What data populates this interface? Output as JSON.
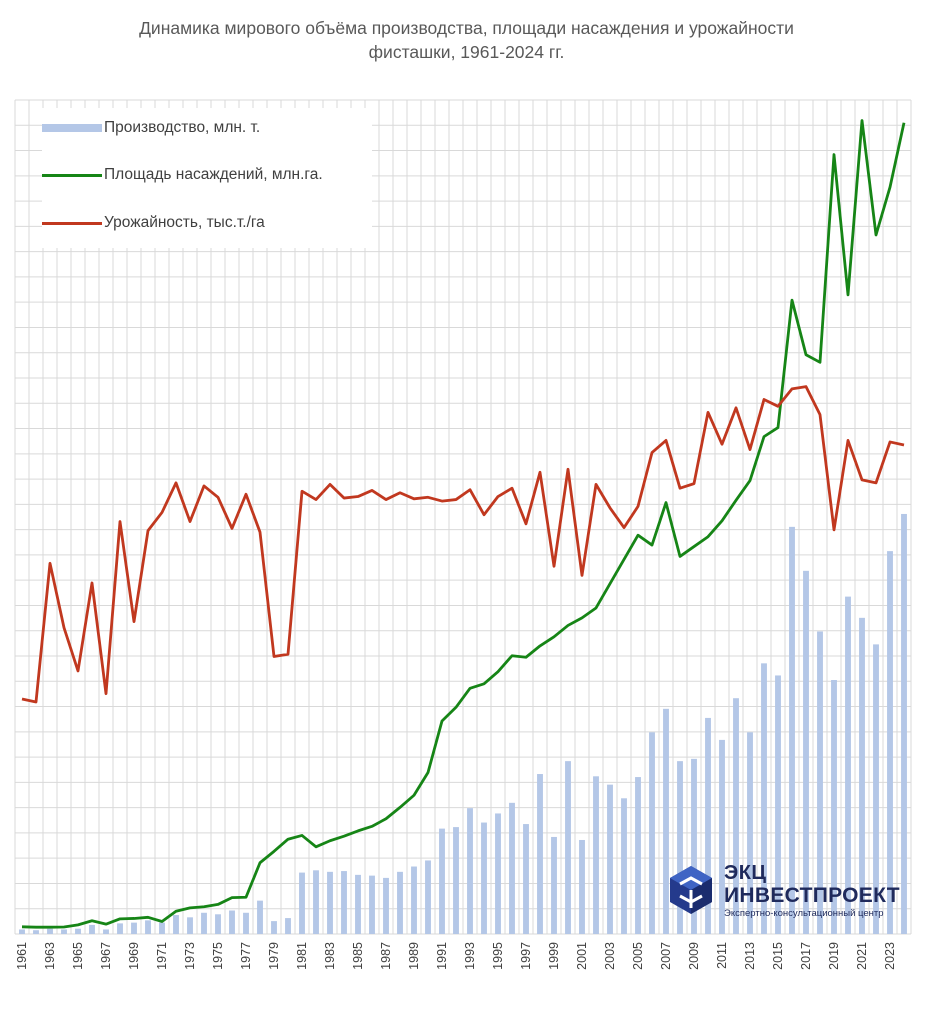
{
  "colors": {
    "production": "#b4c7e7",
    "area": "#168516",
    "yield": "#c1381f",
    "grid": "#d9d9d9"
  },
  "chart_data": {
    "type": "bar+line",
    "title_lines": [
      "Динамика мирового объёма производства, площади насаждения и урожайности",
      "фисташки, 1961-2024 гг."
    ],
    "grid": true,
    "legend_position": "top-left",
    "start_year": 1961,
    "x_tick_labels": [
      "1961",
      "1963",
      "1965",
      "1967",
      "1969",
      "1971",
      "1973",
      "1975",
      "1977",
      "1979",
      "1981",
      "1983",
      "1985",
      "1987",
      "1989",
      "1991",
      "1993",
      "1995",
      "1997",
      "1999",
      "2001",
      "2003",
      "2005",
      "2007",
      "2009",
      "2011",
      "2013",
      "2015",
      "2017",
      "2019",
      "2021",
      "2023"
    ],
    "series": [
      {
        "name": "Производство, млн. т.",
        "kind": "bar",
        "color": "#b4c7e7",
        "values": [
          0.6,
          0.5,
          0.7,
          0.6,
          0.7,
          1.2,
          0.6,
          1.4,
          1.5,
          1.8,
          1.5,
          2.5,
          2.2,
          2.8,
          2.6,
          3.1,
          2.8,
          4.4,
          1.7,
          2.1,
          8.1,
          8.4,
          8.2,
          8.3,
          7.8,
          7.7,
          7.4,
          8.2,
          8.9,
          9.7,
          13.9,
          14.1,
          16.6,
          14.7,
          15.9,
          17.3,
          14.5,
          21.1,
          12.8,
          22.8,
          12.4,
          20.8,
          19.7,
          17.9,
          20.7,
          26.6,
          29.7,
          22.8,
          23.1,
          28.5,
          25.6,
          31.1,
          26.6,
          35.7,
          34.1,
          53.7,
          47.9,
          39.9,
          33.5,
          44.5,
          41.7,
          38.2,
          50.5,
          55.4
        ]
      },
      {
        "name": "Площадь насаждений, млн.га.",
        "kind": "line",
        "color": "#168516",
        "values": [
          0.95,
          0.9,
          0.9,
          0.92,
          1.2,
          1.75,
          1.3,
          2.0,
          2.05,
          2.2,
          1.65,
          3.0,
          3.45,
          3.6,
          3.9,
          4.8,
          4.85,
          9.4,
          10.9,
          12.5,
          13.0,
          11.5,
          12.3,
          12.9,
          13.6,
          14.2,
          15.2,
          16.7,
          18.3,
          21.3,
          28.1,
          29.9,
          32.4,
          33.0,
          34.6,
          36.7,
          36.5,
          38.0,
          39.2,
          40.7,
          41.7,
          43.0,
          46.2,
          49.4,
          52.6,
          51.3,
          56.9,
          49.8,
          51.1,
          52.4,
          54.5,
          57.2,
          59.8,
          65.6,
          66.8,
          83.6,
          76.4,
          75.4,
          102.8,
          84.3,
          107.3,
          92.2,
          98.5,
          107.0
        ]
      },
      {
        "name": "Урожайность, тыс.т./га",
        "kind": "line",
        "color": "#c1381f",
        "values": [
          31.0,
          30.6,
          48.9,
          40.4,
          34.7,
          46.3,
          31.7,
          54.4,
          41.2,
          53.2,
          55.6,
          59.5,
          54.4,
          59.1,
          57.6,
          53.5,
          58.0,
          53.0,
          36.6,
          36.9,
          58.4,
          57.3,
          59.3,
          57.5,
          57.7,
          58.5,
          57.3,
          58.2,
          57.4,
          57.6,
          57.1,
          57.3,
          58.6,
          55.3,
          57.7,
          58.8,
          54.1,
          60.9,
          48.5,
          61.3,
          47.3,
          59.3,
          56.2,
          53.6,
          56.4,
          63.5,
          65.1,
          58.8,
          59.4,
          68.8,
          64.6,
          69.4,
          63.9,
          70.5,
          69.6,
          71.9,
          72.2,
          68.5,
          53.3,
          65.1,
          59.9,
          59.5,
          64.9,
          64.5
        ]
      }
    ]
  },
  "logo": {
    "line1": "ЭКЦ",
    "line2": "ИНВЕСТПРОЕКТ",
    "line3": "Экспертно-консультационный центр"
  }
}
